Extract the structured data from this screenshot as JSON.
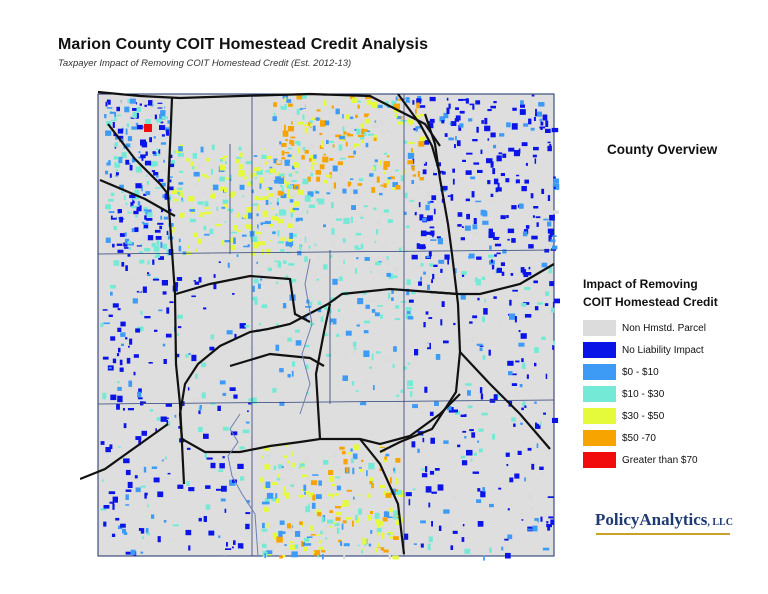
{
  "title": "Marion County COIT Homestead Credit Analysis",
  "subtitle": "Taxpayer Impact of Removing COIT Homestead Credit (Est. 2012-13)",
  "overview_label": "County Overview",
  "legend": {
    "title_line1": "Impact of Removing",
    "title_line2": "COIT Homestead Credit",
    "items": [
      {
        "label": "Non Hmstd. Parcel",
        "color": "#dcdcdc"
      },
      {
        "label": "No Liability Impact",
        "color": "#0a14e6"
      },
      {
        "label": "$0 - $10",
        "color": "#3d9bf5"
      },
      {
        "label": "$10 - $30",
        "color": "#74ead6"
      },
      {
        "label": "$30 - $50",
        "color": "#e6fa3c"
      },
      {
        "label": "$50 -70",
        "color": "#f7a400"
      },
      {
        "label": "Greater than $70",
        "color": "#f20d0d"
      }
    ]
  },
  "logo": {
    "name": "PolicyAnalytics",
    "suffix": "LLC"
  }
}
